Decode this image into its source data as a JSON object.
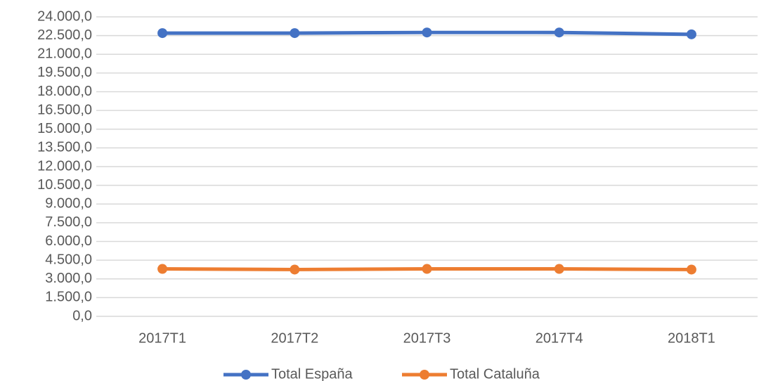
{
  "chart_data": {
    "type": "line",
    "categories": [
      "2017T1",
      "2017T2",
      "2017T3",
      "2017T4",
      "2018T1"
    ],
    "series": [
      {
        "name": "Total España",
        "color": "#4472c4",
        "values": [
          22700,
          22700,
          22750,
          22750,
          22600
        ]
      },
      {
        "name": "Total Cataluña",
        "color": "#ed7d31",
        "values": [
          3800,
          3750,
          3800,
          3800,
          3750
        ]
      }
    ],
    "ylim": [
      0,
      24000
    ],
    "yticks": [
      {
        "value": 0,
        "label": "0,0"
      },
      {
        "value": 1500,
        "label": "1.500,0"
      },
      {
        "value": 3000,
        "label": "3.000,0"
      },
      {
        "value": 4500,
        "label": "4.500,0"
      },
      {
        "value": 6000,
        "label": "6.000,0"
      },
      {
        "value": 7500,
        "label": "7.500,0"
      },
      {
        "value": 9000,
        "label": "9.000,0"
      },
      {
        "value": 10500,
        "label": "10.500,0"
      },
      {
        "value": 12000,
        "label": "12.000,0"
      },
      {
        "value": 13500,
        "label": "13.500,0"
      },
      {
        "value": 15000,
        "label": "15.000,0"
      },
      {
        "value": 16500,
        "label": "16.500,0"
      },
      {
        "value": 18000,
        "label": "18.000,0"
      },
      {
        "value": 19500,
        "label": "19.500,0"
      },
      {
        "value": 21000,
        "label": "21.000,0"
      },
      {
        "value": 22500,
        "label": "22.500,0"
      },
      {
        "value": 24000,
        "label": "24.000,0"
      }
    ],
    "grid": true,
    "legend": "bottom"
  }
}
